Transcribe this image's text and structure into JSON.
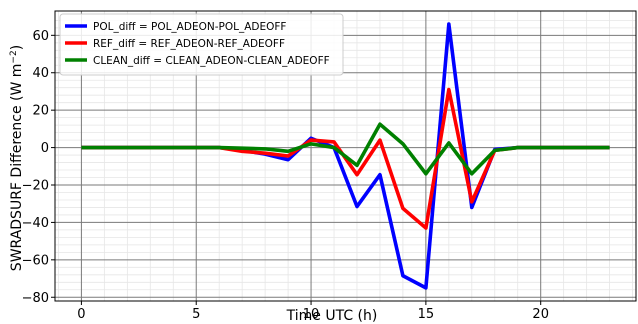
{
  "chart_data": {
    "type": "line",
    "xlabel": "Time UTC (h)",
    "ylabel": "SWRADSURF Difference (W m$^{-2}$)",
    "ylabel_main": "SWRADSURF Difference (W m",
    "ylabel_sup": "−2",
    "ylabel_close": ")",
    "xlim": [
      -1.15,
      24.15
    ],
    "ylim": [
      -82,
      73
    ],
    "xticks": [
      0,
      5,
      10,
      15,
      20
    ],
    "yticks": [
      -80,
      -60,
      -40,
      -20,
      0,
      20,
      40,
      60
    ],
    "grid": true,
    "minor_grid": true,
    "legend_position": "top-left",
    "x": [
      0,
      1,
      2,
      3,
      4,
      5,
      6,
      7,
      8,
      9,
      10,
      11,
      12,
      13,
      14,
      15,
      16,
      17,
      18,
      19,
      20,
      21,
      22,
      23
    ],
    "series": [
      {
        "name": "POL_diff = POL_ADEON-POL_ADEOFF",
        "color": "#0000ff",
        "values": [
          0,
          0,
          0,
          0,
          0,
          0,
          0,
          -1.5,
          -3.5,
          -6.5,
          5,
          0,
          -31.5,
          -14.5,
          -68.5,
          -75,
          66,
          -32,
          -1,
          0,
          0,
          0,
          0,
          0
        ]
      },
      {
        "name": "REF_diff = REF_ADEON-REF_ADEOFF",
        "color": "#ff0000",
        "values": [
          0,
          0,
          0,
          0,
          0,
          0,
          0,
          -2,
          -3,
          -4.5,
          4,
          3,
          -14.5,
          4,
          -32.5,
          -43,
          31,
          -29,
          -1.5,
          0,
          0,
          0,
          0,
          0
        ]
      },
      {
        "name": "CLEAN_diff = CLEAN_ADEON-CLEAN_ADEOFF",
        "color": "#008000",
        "values": [
          0,
          0,
          0,
          0,
          0,
          0,
          0,
          -0.3,
          -0.7,
          -2,
          2,
          0,
          -9.5,
          12.5,
          2,
          -14,
          2.5,
          -14,
          -1.5,
          0,
          0,
          0,
          0,
          0
        ]
      }
    ]
  }
}
